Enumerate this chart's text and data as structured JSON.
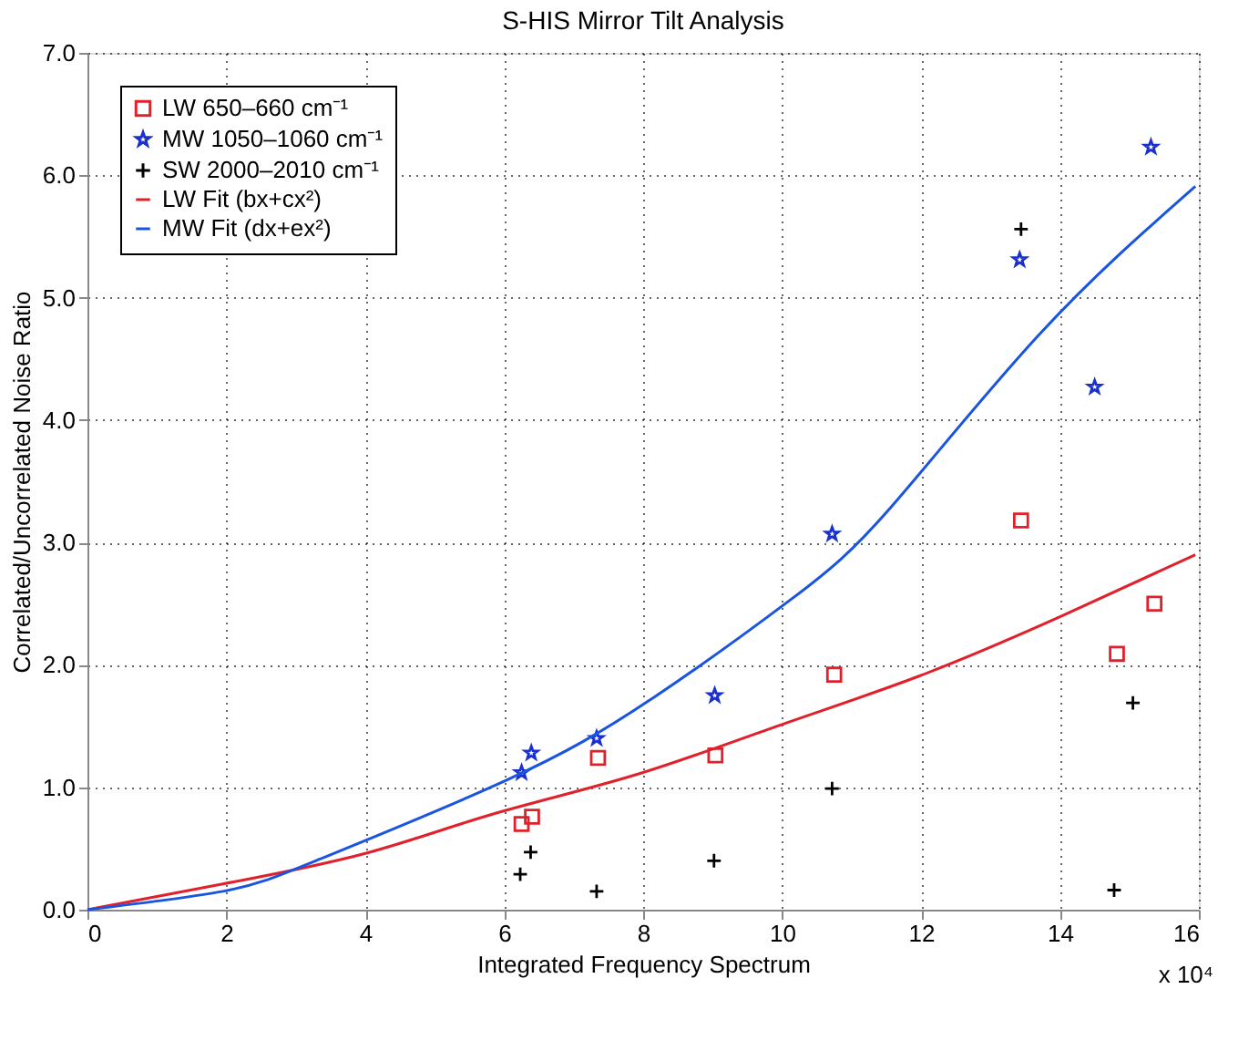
{
  "chart_data": {
    "type": "scatter",
    "title": "S-HIS Mirror Tilt Analysis",
    "xlabel": "Integrated Frequency Spectrum",
    "ylabel": "Correlated/Uncorrelated Noise Ratio",
    "xlim": [
      0,
      16
    ],
    "xticks": [
      0,
      2,
      4,
      6,
      8,
      10,
      12,
      14,
      16
    ],
    "ylim": [
      0,
      7
    ],
    "yticks": [
      {
        "value": 0,
        "label": "0.0"
      },
      {
        "value": 1,
        "label": "1.0"
      },
      {
        "value": 2,
        "label": "2.0"
      },
      {
        "value": 3,
        "label": "3.0"
      },
      {
        "value": 4,
        "label": "4.0"
      },
      {
        "value": 5,
        "label": "5.0"
      },
      {
        "value": 6,
        "label": "6.0"
      },
      {
        "value": 7,
        "label": "7.0"
      }
    ],
    "grid": true,
    "legend": "top left",
    "annotations": [
      "x 10⁴"
    ],
    "series": [
      {
        "name": "LW 650–660 cm⁻¹",
        "marker": "square",
        "color": "#e0202a",
        "x": [
          6.25,
          6.4,
          7.35,
          9.04,
          10.75,
          13.44,
          14.82,
          15.36
        ],
        "values": [
          0.7,
          0.76,
          1.24,
          1.26,
          1.92,
          3.18,
          2.09,
          2.5
        ]
      },
      {
        "name": "MW 1050–1060 cm⁻¹",
        "marker": "star",
        "color": "#1a2fd0",
        "x": [
          6.25,
          6.39,
          7.33,
          9.03,
          10.72,
          13.42,
          14.5,
          15.31
        ],
        "values": [
          1.12,
          1.28,
          1.4,
          1.75,
          3.07,
          5.31,
          4.27,
          6.23
        ]
      },
      {
        "name": "SW 2000–2010 cm⁻¹",
        "marker": "cross",
        "color": "#000000",
        "x": [
          6.23,
          6.38,
          7.33,
          9.02,
          10.72,
          13.44,
          14.78,
          15.05
        ],
        "values": [
          0.29,
          0.47,
          0.15,
          0.4,
          0.99,
          5.56,
          0.16,
          1.69
        ]
      },
      {
        "name": "LW Fit (bx+cx²)",
        "type": "line",
        "marker": "none",
        "color": "#e0202a",
        "x": [
          0,
          1.95,
          4.0,
          5.83,
          7.88,
          9.93,
          11.98,
          14.03,
          15.95
        ],
        "values": [
          0,
          0.21,
          0.46,
          0.78,
          1.1,
          1.5,
          1.91,
          2.4,
          2.9
        ]
      },
      {
        "name": "MW Fit (dx+ex²)",
        "type": "line",
        "marker": "none",
        "color": "#1a55e0",
        "x": [
          0,
          1.95,
          3.33,
          6.04,
          8.09,
          10.14,
          11.57,
          13.72,
          15.95
        ],
        "values": [
          0,
          0.15,
          0.41,
          1.06,
          1.71,
          2.54,
          3.29,
          4.71,
          5.91
        ]
      }
    ]
  }
}
